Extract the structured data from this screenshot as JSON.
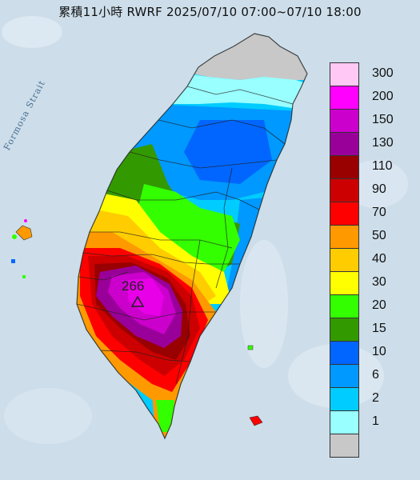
{
  "title": "累積11小時 RWRF 2025/07/10 07:00~07/10 18:00",
  "strait_label": "Formosa Strait",
  "max_value": "266",
  "legend": {
    "items": [
      {
        "label": "300",
        "color": "#ffc8f5"
      },
      {
        "label": "200",
        "color": "#ff00ff"
      },
      {
        "label": "150",
        "color": "#cc00cc"
      },
      {
        "label": "130",
        "color": "#990099"
      },
      {
        "label": "110",
        "color": "#990000"
      },
      {
        "label": "90",
        "color": "#cc0000"
      },
      {
        "label": "70",
        "color": "#ff0000"
      },
      {
        "label": "50",
        "color": "#ff9900"
      },
      {
        "label": "40",
        "color": "#ffcc00"
      },
      {
        "label": "30",
        "color": "#ffff00"
      },
      {
        "label": "20",
        "color": "#33ff00"
      },
      {
        "label": "15",
        "color": "#339900"
      },
      {
        "label": "10",
        "color": "#0066ff"
      },
      {
        "label": "6",
        "color": "#0099ff"
      },
      {
        "label": "2",
        "color": "#00ccff"
      },
      {
        "label": "1",
        "color": "#99ffff"
      },
      {
        "label": "",
        "color": "#c8c8c8"
      }
    ]
  }
}
